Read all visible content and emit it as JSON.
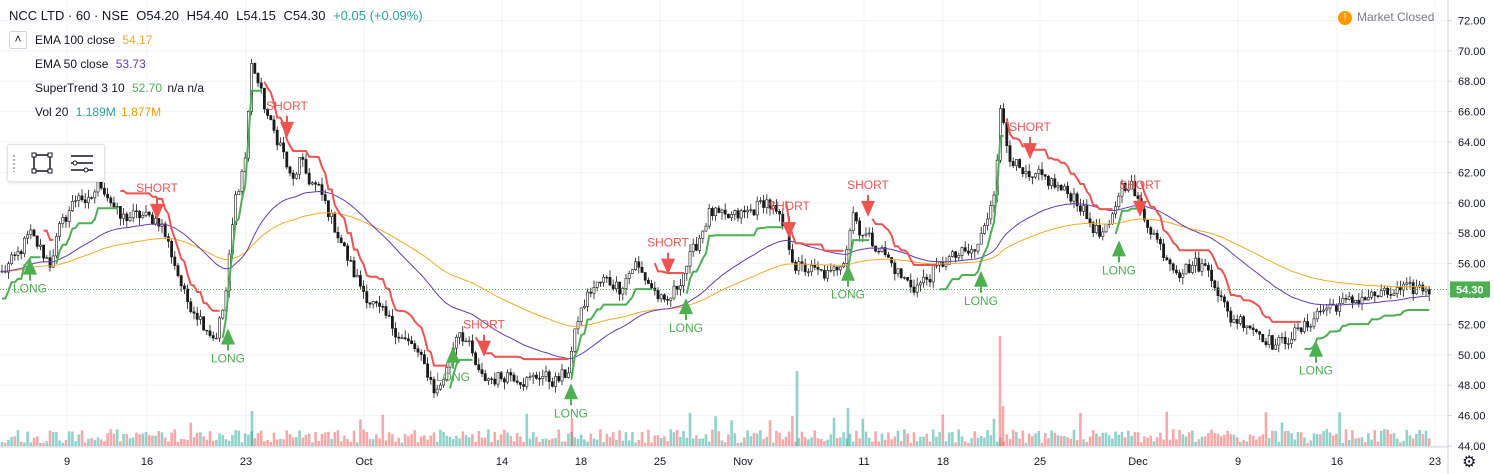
{
  "header": {
    "symbol": "NCC LTD · 60 · NSE",
    "open": "O54.20",
    "high": "H54.40",
    "low": "L54.15",
    "close": "C54.30",
    "change": "+0.05 (+0.09%)"
  },
  "indicators": [
    {
      "label": "EMA 100 close",
      "value": "54.17",
      "value2": "",
      "color": "#f7a823"
    },
    {
      "label": "EMA 50 close",
      "value": "53.73",
      "value2": "",
      "color": "#673ab7"
    },
    {
      "label": "SuperTrend 3 10",
      "value": "52.70",
      "value2": "n/a  n/a",
      "color": "#4caf50"
    },
    {
      "label": "Vol 20",
      "value": "1.189M",
      "value2": "1.877M",
      "color": "#26a69a"
    }
  ],
  "market_status": "Market Closed",
  "colors": {
    "up": "#26a69a",
    "down": "#ef5350",
    "candle": "#1a1a1a",
    "ema100": "#f7a823",
    "ema50": "#673ab7",
    "st_up": "#4caf50",
    "st_down": "#ef5350",
    "last_price_bg": "#4caf50"
  },
  "icons": [
    "rectangle-select-icon",
    "drawing-list-icon",
    "settings-gear-icon",
    "warning-icon"
  ],
  "chart_data": {
    "type": "candlestick",
    "title": "NCC LTD · 60 · NSE",
    "ylim": [
      44,
      72.5
    ],
    "yticks": [
      "72.00",
      "70.00",
      "68.00",
      "66.00",
      "64.00",
      "62.00",
      "60.00",
      "58.00",
      "56.00",
      "54.00",
      "52.00",
      "50.00",
      "48.00",
      "46.00",
      "44.00"
    ],
    "xticks": [
      "9",
      "16",
      "23",
      "Oct",
      "14",
      "18",
      "25",
      "Nov",
      "11",
      "18",
      "25",
      "Dec",
      "9",
      "16",
      "23"
    ],
    "last_price": "54.30",
    "price_keypoints": [
      [
        0,
        55.2
      ],
      [
        20,
        56.8
      ],
      [
        30,
        58.0
      ],
      [
        50,
        56.0
      ],
      [
        60,
        58.4
      ],
      [
        80,
        60.8
      ],
      [
        85,
        59.6
      ],
      [
        100,
        61.4
      ],
      [
        120,
        59.0
      ],
      [
        140,
        59.2
      ],
      [
        160,
        58.8
      ],
      [
        170,
        57.0
      ],
      [
        185,
        53.8
      ],
      [
        200,
        52.4
      ],
      [
        215,
        51.0
      ],
      [
        225,
        53.5
      ],
      [
        235,
        60.2
      ],
      [
        245,
        62.8
      ],
      [
        252,
        69.4
      ],
      [
        260,
        67.4
      ],
      [
        270,
        65.2
      ],
      [
        282,
        63.6
      ],
      [
        292,
        61.2
      ],
      [
        300,
        62.8
      ],
      [
        310,
        61.4
      ],
      [
        320,
        60.8
      ],
      [
        330,
        59.2
      ],
      [
        340,
        57.6
      ],
      [
        355,
        55.2
      ],
      [
        370,
        53.5
      ],
      [
        385,
        52.6
      ],
      [
        400,
        51.2
      ],
      [
        415,
        50.4
      ],
      [
        428,
        48.8
      ],
      [
        436,
        47.4
      ],
      [
        448,
        49.2
      ],
      [
        458,
        51.8
      ],
      [
        470,
        50.4
      ],
      [
        480,
        48.5
      ],
      [
        495,
        48.4
      ],
      [
        510,
        48.8
      ],
      [
        525,
        48.2
      ],
      [
        540,
        48.7
      ],
      [
        555,
        48.2
      ],
      [
        568,
        48.9
      ],
      [
        578,
        52.4
      ],
      [
        590,
        54.2
      ],
      [
        605,
        55.0
      ],
      [
        620,
        54.4
      ],
      [
        635,
        56.0
      ],
      [
        650,
        54.6
      ],
      [
        665,
        53.2
      ],
      [
        678,
        54.6
      ],
      [
        690,
        56.4
      ],
      [
        700,
        57.8
      ],
      [
        710,
        59.4
      ],
      [
        725,
        59.0
      ],
      [
        740,
        59.2
      ],
      [
        755,
        59.6
      ],
      [
        765,
        60.2
      ],
      [
        775,
        59.4
      ],
      [
        785,
        58.2
      ],
      [
        795,
        55.8
      ],
      [
        810,
        55.6
      ],
      [
        830,
        55.2
      ],
      [
        845,
        56.5
      ],
      [
        853,
        59.4
      ],
      [
        860,
        58.2
      ],
      [
        870,
        57.6
      ],
      [
        885,
        56.6
      ],
      [
        900,
        55.2
      ],
      [
        915,
        54.4
      ],
      [
        930,
        55.2
      ],
      [
        945,
        56.2
      ],
      [
        960,
        56.6
      ],
      [
        975,
        56.8
      ],
      [
        985,
        58.4
      ],
      [
        995,
        61.2
      ],
      [
        1001,
        66.4
      ],
      [
        1008,
        63.4
      ],
      [
        1020,
        62.0
      ],
      [
        1030,
        61.4
      ],
      [
        1040,
        61.8
      ],
      [
        1050,
        61.4
      ],
      [
        1062,
        60.8
      ],
      [
        1075,
        60.4
      ],
      [
        1085,
        59.2
      ],
      [
        1100,
        57.8
      ],
      [
        1110,
        58.4
      ],
      [
        1120,
        61.0
      ],
      [
        1130,
        61.4
      ],
      [
        1140,
        59.6
      ],
      [
        1155,
        57.8
      ],
      [
        1165,
        56.6
      ],
      [
        1180,
        55.4
      ],
      [
        1195,
        56.0
      ],
      [
        1210,
        55.6
      ],
      [
        1220,
        53.8
      ],
      [
        1230,
        52.4
      ],
      [
        1245,
        52.2
      ],
      [
        1260,
        51.4
      ],
      [
        1275,
        50.6
      ],
      [
        1290,
        51.2
      ],
      [
        1305,
        51.8
      ],
      [
        1318,
        52.8
      ],
      [
        1330,
        53.2
      ],
      [
        1345,
        53.4
      ],
      [
        1360,
        53.7
      ],
      [
        1375,
        53.9
      ],
      [
        1390,
        54.0
      ],
      [
        1405,
        54.3
      ],
      [
        1420,
        54.4
      ],
      [
        1432,
        54.3
      ]
    ],
    "signals": [
      {
        "label": "LONG",
        "type": "long",
        "x": 30,
        "price": 55.8
      },
      {
        "label": "SHORT",
        "type": "short",
        "x": 157,
        "price": 59.4
      },
      {
        "label": "LONG",
        "type": "long",
        "x": 228,
        "price": 51.2
      },
      {
        "label": "SHORT",
        "type": "short",
        "x": 287,
        "price": 64.8
      },
      {
        "label": "LONG",
        "type": "long",
        "x": 453,
        "price": 50.0
      },
      {
        "label": "SHORT",
        "type": "short",
        "x": 484,
        "price": 50.4
      },
      {
        "label": "LONG",
        "type": "long",
        "x": 571,
        "price": 47.6
      },
      {
        "label": "SHORT",
        "type": "short",
        "x": 668,
        "price": 55.8
      },
      {
        "label": "LONG",
        "type": "long",
        "x": 686,
        "price": 53.2
      },
      {
        "label": "SHORT",
        "type": "short",
        "x": 789,
        "price": 58.2
      },
      {
        "label": "SHORT",
        "type": "short",
        "x": 868,
        "price": 59.6
      },
      {
        "label": "LONG",
        "type": "long",
        "x": 848,
        "price": 55.4
      },
      {
        "label": "LONG",
        "type": "long",
        "x": 981,
        "price": 55.0
      },
      {
        "label": "SHORT",
        "type": "short",
        "x": 1030,
        "price": 63.4
      },
      {
        "label": "LONG",
        "type": "long",
        "x": 1119,
        "price": 57.0
      },
      {
        "label": "SHORT",
        "type": "short",
        "x": 1140,
        "price": 59.6
      },
      {
        "label": "LONG",
        "type": "long",
        "x": 1316,
        "price": 50.4
      }
    ]
  }
}
